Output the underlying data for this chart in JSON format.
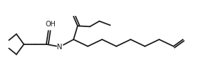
{
  "background_color": "#ffffff",
  "line_color": "#1a1a1a",
  "line_width": 1.3,
  "figsize": [
    3.07,
    1.15
  ],
  "dpi": 100,
  "text_color": "#1a1a1a",
  "font_size": 7.0,
  "xlim": [
    0,
    307
  ],
  "ylim": [
    0,
    115
  ]
}
